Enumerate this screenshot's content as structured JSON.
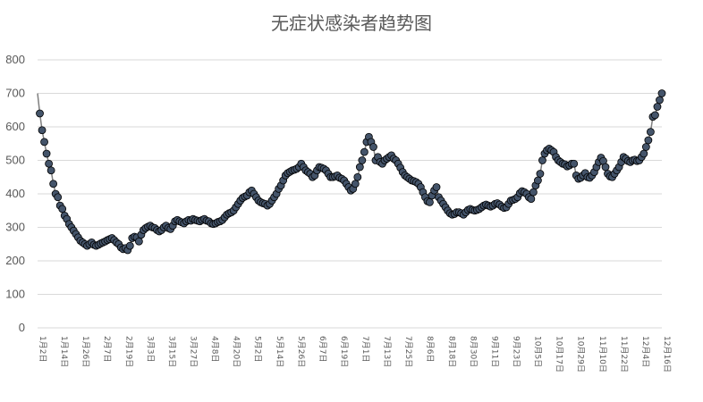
{
  "chart_data": {
    "type": "line",
    "title": "无症状感染者趋势图",
    "ylim": [
      0,
      800
    ],
    "yticks": [
      0,
      100,
      200,
      300,
      400,
      500,
      600,
      700,
      800
    ],
    "grid": true,
    "legend": "none",
    "colors": {
      "line": "#7f7f7f",
      "marker_fill": "#44546a",
      "marker_edge": "#000000",
      "grid": "#d9d9d9",
      "text": "#595959"
    },
    "x_label_dates": [
      "1月2日",
      "1月14日",
      "1月26日",
      "2月7日",
      "2月19日",
      "3月3日",
      "3月15日",
      "3月27日",
      "4月8日",
      "4月20日",
      "5月2日",
      "5月14日",
      "5月26日",
      "6月7日",
      "6月19日",
      "7月1日",
      "7月13日",
      "7月25日",
      "8月6日",
      "8月18日",
      "8月30日",
      "9月11日",
      "9月23日",
      "10月5日",
      "10月17日",
      "10月29日",
      "11月10日",
      "11月22日",
      "12月4日",
      "12月16日"
    ],
    "values": [
      700,
      640,
      590,
      555,
      520,
      490,
      470,
      430,
      400,
      390,
      365,
      355,
      335,
      325,
      310,
      300,
      290,
      280,
      270,
      260,
      255,
      250,
      245,
      250,
      255,
      248,
      245,
      248,
      252,
      255,
      258,
      262,
      265,
      268,
      262,
      255,
      250,
      240,
      235,
      238,
      232,
      245,
      268,
      272,
      270,
      258,
      278,
      292,
      298,
      302,
      305,
      300,
      298,
      292,
      288,
      292,
      300,
      305,
      298,
      295,
      305,
      318,
      322,
      318,
      315,
      312,
      318,
      322,
      320,
      325,
      322,
      320,
      318,
      322,
      325,
      320,
      318,
      312,
      310,
      312,
      316,
      318,
      322,
      330,
      338,
      342,
      345,
      350,
      360,
      370,
      380,
      388,
      392,
      395,
      405,
      410,
      400,
      390,
      380,
      375,
      372,
      370,
      365,
      370,
      380,
      390,
      400,
      415,
      425,
      440,
      455,
      462,
      466,
      470,
      472,
      475,
      480,
      490,
      480,
      470,
      465,
      460,
      450,
      455,
      470,
      480,
      478,
      475,
      470,
      460,
      450,
      450,
      452,
      455,
      448,
      445,
      440,
      430,
      420,
      410,
      415,
      430,
      450,
      480,
      500,
      525,
      555,
      570,
      555,
      540,
      500,
      510,
      495,
      490,
      500,
      505,
      510,
      515,
      505,
      500,
      490,
      478,
      465,
      455,
      450,
      445,
      440,
      438,
      435,
      430,
      420,
      405,
      390,
      378,
      375,
      395,
      410,
      420,
      390,
      380,
      370,
      360,
      350,
      342,
      338,
      340,
      345,
      345,
      342,
      338,
      345,
      352,
      355,
      352,
      350,
      352,
      355,
      360,
      365,
      368,
      365,
      362,
      365,
      370,
      372,
      368,
      362,
      358,
      360,
      370,
      380,
      382,
      385,
      390,
      402,
      408,
      405,
      400,
      390,
      385,
      405,
      425,
      440,
      460,
      500,
      520,
      530,
      535,
      530,
      525,
      510,
      500,
      495,
      490,
      488,
      482,
      485,
      490,
      490,
      455,
      445,
      448,
      455,
      462,
      450,
      448,
      455,
      465,
      480,
      495,
      508,
      498,
      480,
      460,
      452,
      450,
      460,
      470,
      480,
      495,
      510,
      505,
      498,
      495,
      500,
      502,
      498,
      500,
      510,
      520,
      540,
      560,
      585,
      630,
      635,
      660,
      680,
      700
    ]
  }
}
